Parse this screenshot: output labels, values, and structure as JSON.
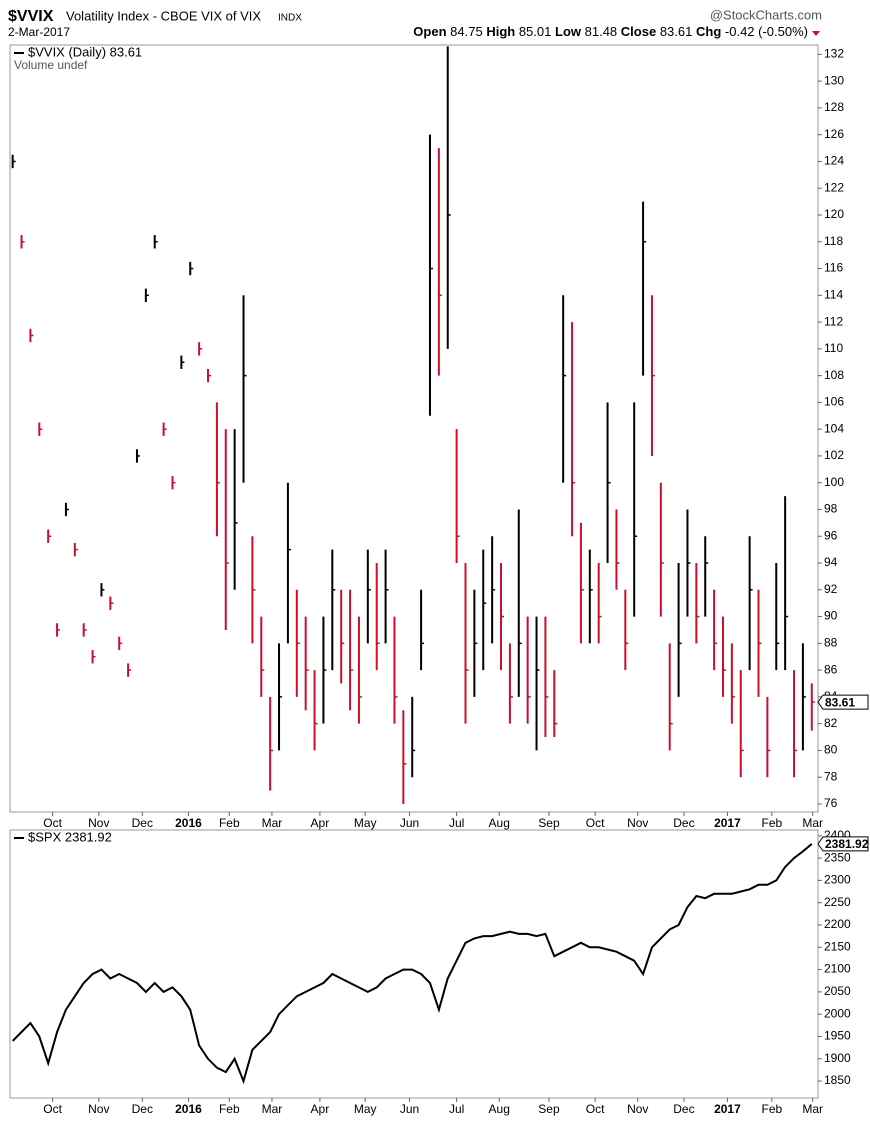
{
  "header": {
    "symbol": "$VVIX",
    "name": "Volatility Index - CBOE VIX of VIX",
    "exchange": "INDX",
    "source": "@StockCharts.com",
    "date": "2-Mar-2017",
    "open": {
      "label": "Open",
      "value": 84.75
    },
    "high": {
      "label": "High",
      "value": 85.01
    },
    "low": {
      "label": "Low",
      "value": 81.48
    },
    "close": {
      "label": "Close",
      "value": 83.61
    },
    "chg": {
      "label": "Chg",
      "value": "-0.42 (-0.50%)"
    }
  },
  "chart_data": [
    {
      "type": "ohlc",
      "legend": "$VVIX (Daily) 83.61",
      "legend2": "Volume undef",
      "last_label": 83.61,
      "up_color": "#000000",
      "down_color": "#c8102e",
      "xlim": [
        -0.3,
        90.7
      ],
      "ylim": [
        75.4,
        132.7
      ],
      "yticks": [
        76,
        78,
        80,
        82,
        84,
        86,
        88,
        90,
        92,
        94,
        96,
        98,
        100,
        102,
        104,
        106,
        108,
        110,
        112,
        114,
        116,
        118,
        120,
        122,
        124,
        126,
        128,
        130,
        132
      ],
      "xticks": [
        {
          "value": 4.5,
          "label": "Oct"
        },
        {
          "value": 9.7,
          "label": "Nov"
        },
        {
          "value": 14.6,
          "label": "Dec"
        },
        {
          "value": 19.8,
          "label": "2016"
        },
        {
          "value": 24.4,
          "label": "Feb"
        },
        {
          "value": 29.2,
          "label": "Mar"
        },
        {
          "value": 34.6,
          "label": "Apr"
        },
        {
          "value": 39.7,
          "label": "May"
        },
        {
          "value": 44.7,
          "label": "Jun"
        },
        {
          "value": 50,
          "label": "Jul"
        },
        {
          "value": 54.8,
          "label": "Aug"
        },
        {
          "value": 60.4,
          "label": "Sep"
        },
        {
          "value": 65.6,
          "label": "Oct"
        },
        {
          "value": 70.4,
          "label": "Nov"
        },
        {
          "value": 75.6,
          "label": "Dec"
        },
        {
          "value": 80.5,
          "label": "2017"
        },
        {
          "value": 85.5,
          "label": "Feb"
        },
        {
          "value": 90.1,
          "label": "Mar"
        }
      ],
      "grid": false,
      "high": [
        124.5,
        118.5,
        111.5,
        104.5,
        96.5,
        89.5,
        98.5,
        95.5,
        89.5,
        87.5,
        92.5,
        91.5,
        88.5,
        86.5,
        102.5,
        114.5,
        118.5,
        104.5,
        100.5,
        109.5,
        116.5,
        110.5,
        108.5,
        106,
        104,
        104,
        114,
        96,
        90,
        84,
        88,
        100,
        92,
        90,
        86,
        90,
        95,
        92,
        92,
        90,
        95,
        94,
        95,
        90,
        83,
        84,
        92,
        126,
        125,
        132.6,
        104,
        94,
        92,
        95,
        96,
        94,
        88,
        98,
        90,
        90,
        90,
        86,
        114,
        112,
        97,
        95,
        94,
        106,
        98,
        92,
        106,
        121,
        114,
        100,
        88,
        94,
        98,
        94,
        96,
        92,
        90,
        88,
        86,
        96,
        92,
        84,
        94,
        99,
        86,
        88,
        85.01
      ],
      "low": [
        123.5,
        117.5,
        110.5,
        103.5,
        95.5,
        88.5,
        97.5,
        94.5,
        88.5,
        86.5,
        91.5,
        90.5,
        87.5,
        85.5,
        101.5,
        113.5,
        117.5,
        103.5,
        99.5,
        108.5,
        115.5,
        109.5,
        107.5,
        96,
        89,
        92,
        100,
        88,
        84,
        77,
        80,
        88,
        84,
        83,
        80,
        82,
        86,
        85,
        83,
        82,
        88,
        86,
        88,
        82,
        76,
        78,
        86,
        105,
        108,
        110,
        94,
        82,
        84,
        86,
        88,
        86,
        82,
        84,
        82,
        80,
        81,
        81,
        100,
        96,
        88,
        88,
        88,
        94,
        92,
        86,
        90,
        108,
        102,
        90,
        80,
        84,
        90,
        88,
        90,
        86,
        84,
        82,
        78,
        86,
        84,
        78,
        86,
        86,
        78,
        80,
        81.48
      ],
      "close": [
        124,
        118,
        111,
        104,
        96,
        89,
        98,
        95,
        89,
        87,
        92,
        91,
        88,
        86,
        102,
        114,
        118,
        104,
        100,
        109,
        116,
        110,
        108,
        100,
        94,
        97,
        108,
        92,
        86,
        80,
        84,
        95,
        88,
        86,
        82,
        86,
        92,
        88,
        86,
        84,
        92,
        88,
        92,
        84,
        79,
        80,
        88,
        116,
        114,
        120,
        96,
        86,
        88,
        91,
        92,
        90,
        84,
        88,
        84,
        86,
        84,
        82,
        108,
        100,
        92,
        92,
        90,
        100,
        94,
        88,
        96,
        118,
        108,
        94,
        82,
        88,
        94,
        90,
        94,
        88,
        86,
        84,
        80,
        92,
        88,
        80,
        88,
        90,
        80,
        84,
        83.61
      ]
    },
    {
      "type": "line",
      "legend": "$SPX 2381.92",
      "last_label": 2381.92,
      "color": "#000000",
      "xlim": [
        -0.3,
        90.7
      ],
      "ylim": [
        1812,
        2413
      ],
      "yticks": [
        1850,
        1900,
        1950,
        2000,
        2050,
        2100,
        2150,
        2200,
        2250,
        2300,
        2350,
        2400
      ],
      "xticks": [
        {
          "value": 4.5,
          "label": "Oct"
        },
        {
          "value": 9.7,
          "label": "Nov"
        },
        {
          "value": 14.6,
          "label": "Dec"
        },
        {
          "value": 19.8,
          "label": "2016"
        },
        {
          "value": 24.4,
          "label": "Feb"
        },
        {
          "value": 29.2,
          "label": "Mar"
        },
        {
          "value": 34.6,
          "label": "Apr"
        },
        {
          "value": 39.7,
          "label": "May"
        },
        {
          "value": 44.7,
          "label": "Jun"
        },
        {
          "value": 50,
          "label": "Jul"
        },
        {
          "value": 54.8,
          "label": "Aug"
        },
        {
          "value": 60.4,
          "label": "Sep"
        },
        {
          "value": 65.6,
          "label": "Oct"
        },
        {
          "value": 70.4,
          "label": "Nov"
        },
        {
          "value": 75.6,
          "label": "Dec"
        },
        {
          "value": 80.5,
          "label": "2017"
        },
        {
          "value": 85.5,
          "label": "Feb"
        },
        {
          "value": 90.1,
          "label": "Mar"
        }
      ],
      "grid": false,
      "values": [
        1940,
        1960,
        1980,
        1950,
        1890,
        1960,
        2010,
        2040,
        2070,
        2090,
        2100,
        2080,
        2090,
        2080,
        2070,
        2050,
        2070,
        2050,
        2060,
        2040,
        2010,
        1930,
        1900,
        1880,
        1870,
        1900,
        1850,
        1920,
        1940,
        1960,
        2000,
        2020,
        2040,
        2050,
        2060,
        2070,
        2090,
        2080,
        2070,
        2060,
        2050,
        2060,
        2080,
        2090,
        2100,
        2100,
        2090,
        2070,
        2010,
        2080,
        2120,
        2160,
        2170,
        2175,
        2175,
        2180,
        2185,
        2180,
        2180,
        2175,
        2180,
        2130,
        2140,
        2150,
        2160,
        2150,
        2150,
        2145,
        2140,
        2130,
        2120,
        2090,
        2150,
        2170,
        2190,
        2200,
        2240,
        2265,
        2260,
        2270,
        2270,
        2270,
        2275,
        2280,
        2290,
        2290,
        2300,
        2330,
        2350,
        2365,
        2381.92
      ]
    }
  ]
}
